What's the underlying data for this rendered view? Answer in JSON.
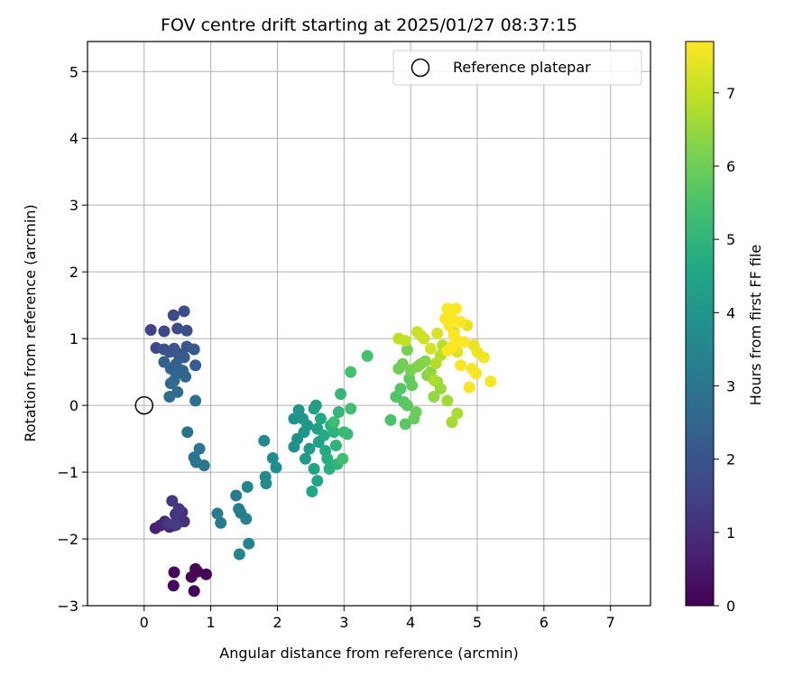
{
  "chart_data": {
    "type": "scatter",
    "title": "FOV centre drift starting at 2025/01/27 08:37:15",
    "xlabel": "Angular distance from reference (arcmin)",
    "ylabel": "Rotation from reference (arcmin)",
    "xlim": [
      -0.85,
      7.6
    ],
    "ylim": [
      -3.0,
      5.45
    ],
    "xticks": [
      0,
      1,
      2,
      3,
      4,
      5,
      6,
      7
    ],
    "yticks": [
      -3,
      -2,
      -1,
      0,
      1,
      2,
      3,
      4,
      5
    ],
    "grid": true,
    "legend": {
      "position": "top-right",
      "entries": [
        "Reference platepar"
      ]
    },
    "reference_point": {
      "label": "Reference platepar",
      "x": 0,
      "y": 0
    },
    "colorbar": {
      "label": "Hours from first FF file",
      "colormap": "viridis",
      "range": [
        0,
        7.7
      ],
      "ticks": [
        0,
        1,
        2,
        3,
        4,
        5,
        6,
        7
      ]
    },
    "points": [
      [
        0.77,
        -2.45,
        0.05
      ],
      [
        0.8,
        -2.49,
        0.08
      ],
      [
        0.93,
        -2.53,
        0.1
      ],
      [
        0.71,
        -2.57,
        0.12
      ],
      [
        0.75,
        -2.78,
        0.14
      ],
      [
        0.45,
        -2.5,
        0.16
      ],
      [
        0.44,
        -2.7,
        0.18
      ],
      [
        0.17,
        -1.84,
        0.7
      ],
      [
        0.24,
        -1.8,
        0.75
      ],
      [
        0.31,
        -1.74,
        0.8
      ],
      [
        0.38,
        -1.82,
        0.85
      ],
      [
        0.45,
        -1.8,
        0.9
      ],
      [
        0.5,
        -1.7,
        0.95
      ],
      [
        0.54,
        -1.65,
        1.0
      ],
      [
        0.57,
        -1.6,
        1.05
      ],
      [
        0.6,
        -1.74,
        1.1
      ],
      [
        0.47,
        -1.63,
        1.15
      ],
      [
        0.42,
        -1.43,
        1.2
      ],
      [
        0.52,
        -1.55,
        1.25
      ],
      [
        0.35,
        -1.77,
        1.3
      ],
      [
        0.48,
        -1.79,
        1.35
      ],
      [
        0.1,
        1.13,
        1.55
      ],
      [
        0.18,
        0.86,
        1.6
      ],
      [
        0.3,
        1.11,
        1.65
      ],
      [
        0.44,
        1.35,
        1.7
      ],
      [
        0.5,
        1.15,
        1.75
      ],
      [
        0.6,
        1.41,
        1.8
      ],
      [
        0.64,
        1.12,
        1.85
      ],
      [
        0.3,
        0.84,
        1.9
      ],
      [
        0.38,
        0.8,
        1.95
      ],
      [
        0.45,
        0.85,
        2.0
      ],
      [
        0.5,
        0.78,
        2.05
      ],
      [
        0.64,
        0.88,
        2.1
      ],
      [
        0.75,
        0.84,
        2.15
      ],
      [
        0.6,
        0.72,
        2.2
      ],
      [
        0.77,
        0.6,
        2.25
      ],
      [
        0.48,
        0.62,
        2.3
      ],
      [
        0.3,
        0.65,
        2.35
      ],
      [
        0.4,
        0.55,
        2.4
      ],
      [
        0.48,
        0.47,
        2.45
      ],
      [
        0.58,
        0.52,
        2.5
      ],
      [
        0.62,
        0.43,
        2.55
      ],
      [
        0.4,
        0.33,
        2.6
      ],
      [
        0.45,
        0.37,
        2.65
      ],
      [
        0.5,
        0.2,
        2.7
      ],
      [
        0.38,
        0.13,
        2.75
      ],
      [
        0.77,
        0.07,
        2.8
      ],
      [
        0.65,
        -0.4,
        2.85
      ],
      [
        0.83,
        -0.65,
        2.9
      ],
      [
        0.75,
        -0.78,
        2.95
      ],
      [
        0.78,
        -0.85,
        3.0
      ],
      [
        0.9,
        -0.9,
        3.05
      ],
      [
        1.1,
        -1.62,
        3.1
      ],
      [
        1.15,
        -1.76,
        3.15
      ],
      [
        1.38,
        -1.35,
        3.2
      ],
      [
        1.42,
        -1.55,
        3.25
      ],
      [
        1.45,
        -1.61,
        3.3
      ],
      [
        1.53,
        -1.7,
        3.35
      ],
      [
        1.57,
        -2.07,
        3.4
      ],
      [
        1.43,
        -2.23,
        3.45
      ],
      [
        1.55,
        -1.22,
        3.5
      ],
      [
        1.8,
        -0.53,
        3.55
      ],
      [
        1.82,
        -1.07,
        3.6
      ],
      [
        1.83,
        -1.17,
        3.65
      ],
      [
        1.93,
        -0.79,
        3.7
      ],
      [
        1.98,
        -0.93,
        3.75
      ],
      [
        2.25,
        -0.62,
        3.8
      ],
      [
        2.3,
        -0.5,
        3.85
      ],
      [
        2.25,
        -0.2,
        3.9
      ],
      [
        2.32,
        -0.07,
        3.95
      ],
      [
        2.38,
        -0.2,
        4.0
      ],
      [
        2.4,
        -0.4,
        4.05
      ],
      [
        2.45,
        -0.3,
        4.1
      ],
      [
        2.48,
        -0.65,
        4.15
      ],
      [
        2.42,
        -0.8,
        4.2
      ],
      [
        2.55,
        -0.05,
        4.25
      ],
      [
        2.58,
        0.0,
        4.3
      ],
      [
        2.6,
        -0.35,
        4.35
      ],
      [
        2.62,
        -0.55,
        4.4
      ],
      [
        2.55,
        -0.95,
        4.45
      ],
      [
        2.6,
        -1.13,
        4.5
      ],
      [
        2.52,
        -1.29,
        4.55
      ],
      [
        2.65,
        -0.2,
        4.6
      ],
      [
        2.7,
        -0.45,
        4.65
      ],
      [
        2.72,
        -0.68,
        4.7
      ],
      [
        2.75,
        -0.8,
        4.75
      ],
      [
        2.78,
        -0.95,
        4.8
      ],
      [
        2.8,
        -0.3,
        4.85
      ],
      [
        2.85,
        -0.4,
        4.9
      ],
      [
        2.88,
        -0.6,
        4.95
      ],
      [
        2.9,
        -0.88,
        5.0
      ],
      [
        2.92,
        -0.1,
        5.05
      ],
      [
        2.95,
        0.17,
        5.1
      ],
      [
        3.0,
        -0.4,
        5.15
      ],
      [
        3.05,
        -0.43,
        5.2
      ],
      [
        3.1,
        -0.05,
        5.25
      ],
      [
        2.85,
        -0.25,
        5.3
      ],
      [
        2.98,
        -0.8,
        5.35
      ],
      [
        3.1,
        0.5,
        5.4
      ],
      [
        3.35,
        0.74,
        5.45
      ],
      [
        3.7,
        -0.22,
        5.5
      ],
      [
        3.78,
        0.13,
        5.55
      ],
      [
        3.85,
        0.25,
        5.6
      ],
      [
        3.9,
        0.05,
        5.65
      ],
      [
        3.92,
        -0.28,
        5.7
      ],
      [
        3.95,
        0.0,
        5.75
      ],
      [
        3.98,
        0.4,
        5.8
      ],
      [
        4.02,
        0.3,
        5.85
      ],
      [
        4.05,
        -0.2,
        5.9
      ],
      [
        4.08,
        -0.1,
        5.95
      ],
      [
        3.82,
        0.55,
        6.0
      ],
      [
        3.88,
        0.62,
        6.05
      ],
      [
        3.95,
        0.83,
        6.1
      ],
      [
        4.0,
        0.53,
        6.15
      ],
      [
        4.1,
        0.58,
        6.2
      ],
      [
        4.15,
        0.62,
        6.25
      ],
      [
        4.22,
        0.66,
        6.3
      ],
      [
        4.25,
        0.45,
        6.35
      ],
      [
        4.3,
        0.5,
        6.4
      ],
      [
        4.35,
        0.13,
        6.45
      ],
      [
        4.4,
        0.35,
        6.5
      ],
      [
        4.45,
        0.25,
        6.55
      ],
      [
        4.55,
        0.07,
        6.6
      ],
      [
        4.62,
        -0.25,
        6.65
      ],
      [
        4.7,
        -0.12,
        6.7
      ],
      [
        4.35,
        0.38,
        6.75
      ],
      [
        4.38,
        0.63,
        6.8
      ],
      [
        4.45,
        0.75,
        6.85
      ],
      [
        4.48,
        0.9,
        6.9
      ],
      [
        3.82,
        1.0,
        6.95
      ],
      [
        3.92,
        0.97,
        7.0
      ],
      [
        4.1,
        1.1,
        7.05
      ],
      [
        4.15,
        1.05,
        7.1
      ],
      [
        4.2,
        1.0,
        7.15
      ],
      [
        4.3,
        0.85,
        7.2
      ],
      [
        4.4,
        1.08,
        7.25
      ],
      [
        4.65,
        1.1,
        7.3
      ],
      [
        4.7,
        0.8,
        7.35
      ],
      [
        4.85,
        1.2,
        7.4
      ],
      [
        4.95,
        0.9,
        7.45
      ],
      [
        5.0,
        0.8,
        7.5
      ],
      [
        5.1,
        0.72,
        7.55
      ],
      [
        5.2,
        0.36,
        7.58
      ],
      [
        4.88,
        0.27,
        7.6
      ],
      [
        4.92,
        0.55,
        7.62
      ],
      [
        4.98,
        0.48,
        7.63
      ],
      [
        4.75,
        0.6,
        7.64
      ],
      [
        4.8,
        0.95,
        7.65
      ],
      [
        4.55,
        1.45,
        7.66
      ],
      [
        4.6,
        1.4,
        7.67
      ],
      [
        4.62,
        1.3,
        7.68
      ],
      [
        4.68,
        1.45,
        7.69
      ],
      [
        4.75,
        1.25,
        7.7
      ],
      [
        4.52,
        1.3,
        7.7
      ],
      [
        4.58,
        1.2,
        7.7
      ],
      [
        4.65,
        1.05,
        7.7
      ],
      [
        4.72,
        0.95,
        7.7
      ],
      [
        4.55,
        0.82,
        7.7
      ],
      [
        4.62,
        0.88,
        7.7
      ]
    ]
  }
}
